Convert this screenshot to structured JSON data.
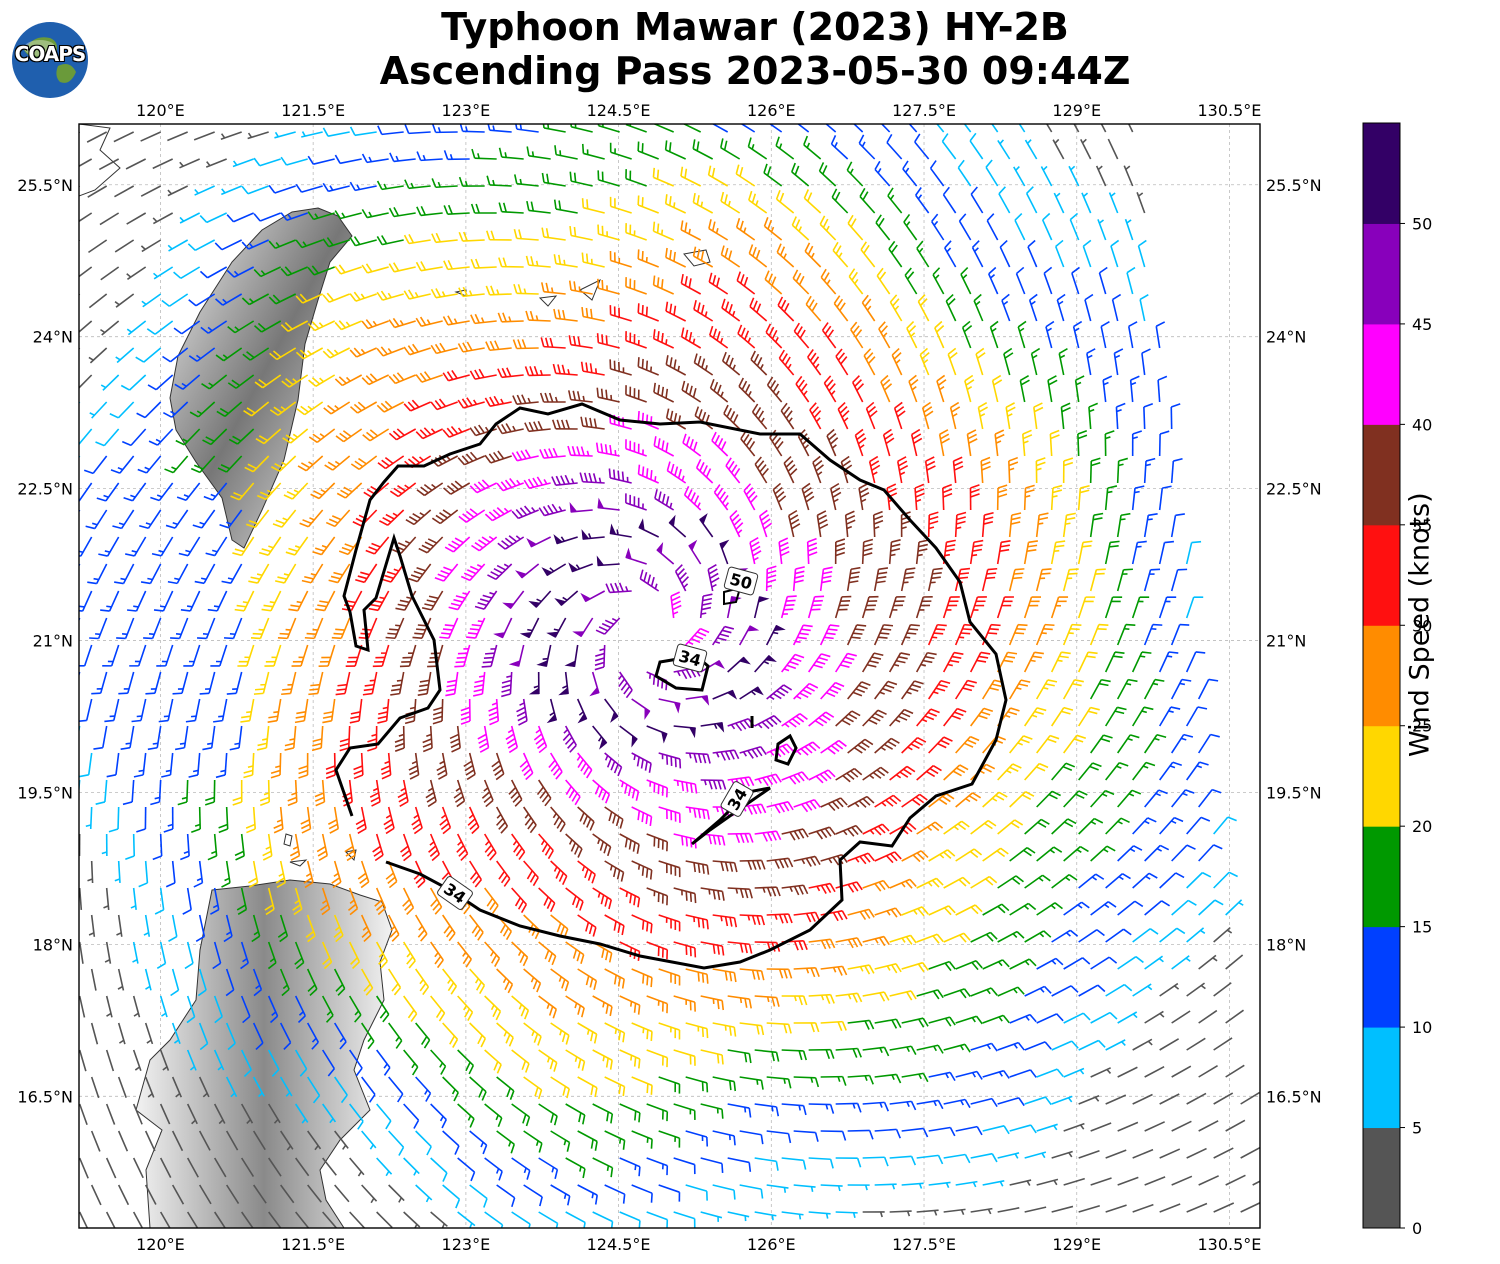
{
  "title": {
    "line1": "Typhoon Mawar (2023) HY-2B",
    "line2": "Ascending Pass 2023-05-30 09:44Z"
  },
  "logo": {
    "text": "COAPS",
    "icon": "globe-icon"
  },
  "map": {
    "lon_ticks": [
      "120°E",
      "121.5°E",
      "123°E",
      "124.5°E",
      "126°E",
      "127.5°E",
      "129°E",
      "130.5°E"
    ],
    "lat_ticks": [
      "25.5°N",
      "24°N",
      "22.5°N",
      "21°N",
      "19.5°N",
      "18°N",
      "16.5°N"
    ],
    "lon_range": [
      119.2,
      130.8
    ],
    "lat_range": [
      15.2,
      26.1
    ],
    "contour_labels": [
      "50",
      "34",
      "34",
      "34"
    ],
    "storm_center": {
      "lon": 124.8,
      "lat": 21.1
    },
    "land_masses": [
      "Taiwan",
      "Luzon"
    ],
    "contour_color": "#000000"
  },
  "colorbar": {
    "label": "Wind Speed (knots)",
    "tick_labels": [
      "0",
      "5",
      "10",
      "15",
      "20",
      "25",
      "30",
      "35",
      "40",
      "45",
      "50"
    ],
    "bins": [
      {
        "min": 0,
        "max": 5,
        "color": "#555555"
      },
      {
        "min": 5,
        "max": 10,
        "color": "#00bfff"
      },
      {
        "min": 10,
        "max": 15,
        "color": "#0040ff"
      },
      {
        "min": 15,
        "max": 20,
        "color": "#009900"
      },
      {
        "min": 20,
        "max": 25,
        "color": "#ffd700"
      },
      {
        "min": 25,
        "max": 30,
        "color": "#ff8c00"
      },
      {
        "min": 30,
        "max": 35,
        "color": "#ff1010"
      },
      {
        "min": 35,
        "max": 40,
        "color": "#803020"
      },
      {
        "min": 40,
        "max": 45,
        "color": "#ff00ff"
      },
      {
        "min": 45,
        "max": 50,
        "color": "#8800bb"
      },
      {
        "min": 50,
        "max": 55,
        "color": "#330066"
      }
    ]
  }
}
